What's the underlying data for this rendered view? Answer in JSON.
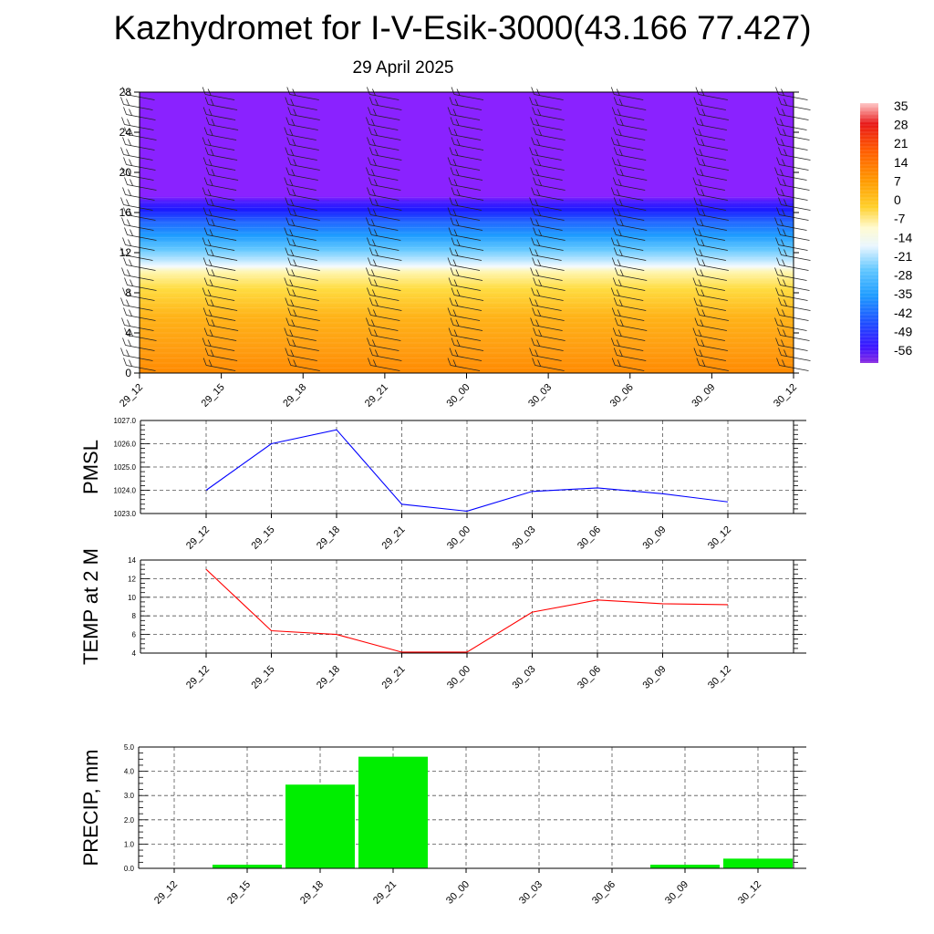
{
  "title": "Kazhydromet for I-V-Esik-3000(43.166 77.427)",
  "subtitle": "29 April 2025",
  "colors": {
    "pmsl_line": "#0000ff",
    "temp_line": "#ff0000",
    "precip_bar": "#00ee00",
    "grid": "#555555"
  },
  "chart_data": [
    {
      "type": "heatmap",
      "title": "",
      "xlabel": "",
      "ylabel": "",
      "categories": [
        "29_12",
        "29_15",
        "29_18",
        "29_21",
        "30_00",
        "30_03",
        "30_06",
        "30_09",
        "30_12"
      ],
      "yticks": [
        0,
        4,
        8,
        12,
        16,
        20,
        24,
        28
      ],
      "ylim": [
        0,
        28
      ],
      "overlay": "wind barbs",
      "colorbar": {
        "labels": [
          "35",
          "28",
          "21",
          "14",
          "7",
          "0",
          "-7",
          "-14",
          "-21",
          "-28",
          "-35",
          "-42",
          "-49",
          "-56"
        ],
        "range": [
          -60,
          38
        ]
      },
      "profile": {
        "heights": [
          0,
          2,
          4,
          6,
          8,
          10,
          10.5,
          11,
          12,
          13,
          14,
          15,
          16,
          16.8,
          17.3,
          28
        ],
        "values": [
          14,
          11,
          7,
          4,
          0,
          -4,
          -7,
          -14,
          -21,
          -28,
          -35,
          -42,
          -50,
          -56,
          -58,
          -58
        ]
      }
    },
    {
      "type": "line",
      "ylabel": "PMSL",
      "categories": [
        "29_12",
        "29_15",
        "29_18",
        "29_21",
        "30_00",
        "30_03",
        "30_06",
        "30_09",
        "30_12"
      ],
      "yticks": [
        "1023.0",
        "1024.0",
        "1025.0",
        "1026.0",
        "1027.0"
      ],
      "ylim": [
        1023,
        1027
      ],
      "grid": true,
      "series": [
        {
          "values": [
            1024.0,
            1026.0,
            1026.6,
            1023.4,
            1023.1,
            1023.95,
            1024.1,
            1023.85,
            1023.5
          ]
        }
      ]
    },
    {
      "type": "line",
      "ylabel": "TEMP at 2 M",
      "categories": [
        "29_12",
        "29_15",
        "29_18",
        "29_21",
        "30_00",
        "30_03",
        "30_06",
        "30_09",
        "30_12"
      ],
      "yticks": [
        "4",
        "6",
        "8",
        "10",
        "12",
        "14"
      ],
      "ylim": [
        4,
        14
      ],
      "grid": true,
      "series": [
        {
          "values": [
            13.0,
            6.4,
            6.0,
            4.1,
            4.1,
            8.4,
            9.7,
            9.3,
            9.2
          ]
        }
      ]
    },
    {
      "type": "bar",
      "ylabel": "PRECIP, mm",
      "categories": [
        "29_12",
        "29_15",
        "29_18",
        "29_21",
        "30_00",
        "30_03",
        "30_06",
        "30_09",
        "30_12"
      ],
      "yticks": [
        "0.0",
        "1.0",
        "2.0",
        "3.0",
        "4.0",
        "5.0"
      ],
      "ylim": [
        0,
        5
      ],
      "grid": true,
      "values": [
        0.0,
        0.15,
        3.45,
        4.6,
        0.0,
        0.0,
        0.0,
        0.15,
        0.4
      ]
    }
  ]
}
